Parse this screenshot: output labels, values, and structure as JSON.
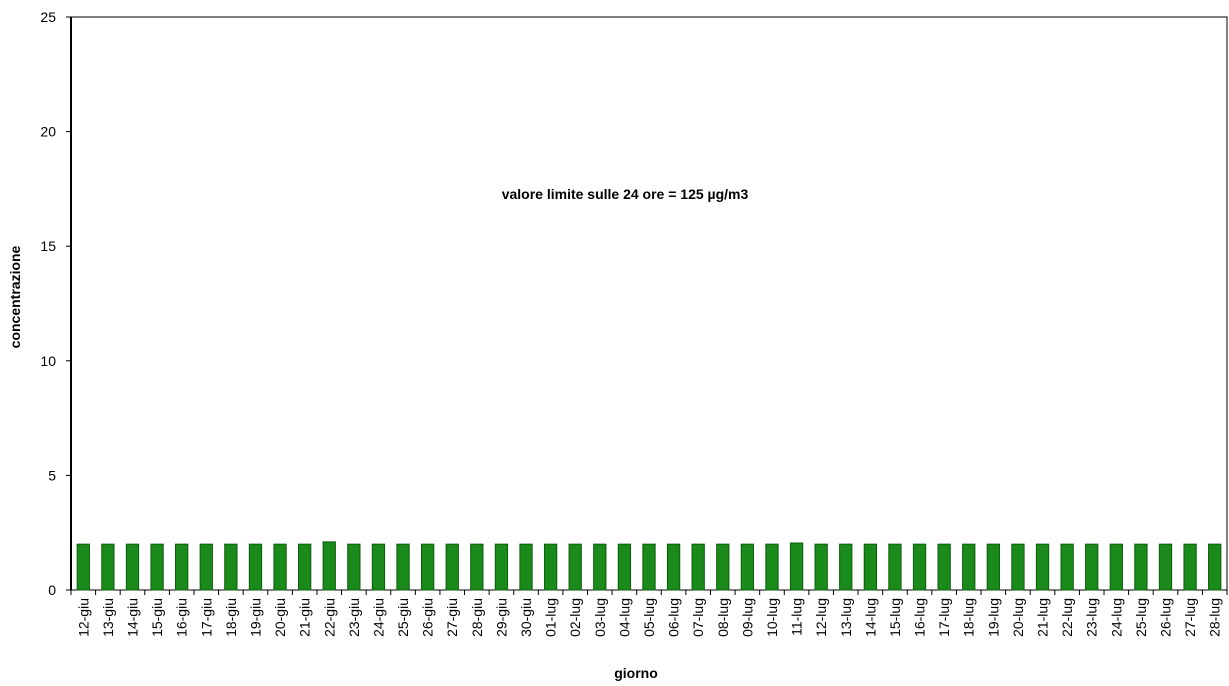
{
  "chart_data": {
    "type": "bar",
    "xlabel": "giorno",
    "ylabel": "concentrazione",
    "ylim": [
      0,
      25
    ],
    "yticks": [
      0,
      5,
      10,
      15,
      20,
      25
    ],
    "annotation": "valore limite sulle 24 ore = 125 µg/m3",
    "grid": false,
    "legend": "none",
    "bar_color": "#1a8a1a",
    "bar_edge_color": "#0b5e0b",
    "categories": [
      "12-giu",
      "13-giu",
      "14-giu",
      "15-giu",
      "16-giu",
      "17-giu",
      "18-giu",
      "19-giu",
      "20-giu",
      "21-giu",
      "22-giu",
      "23-giu",
      "24-giu",
      "25-giu",
      "26-giu",
      "27-giu",
      "28-giu",
      "29-giu",
      "30-giu",
      "01-lug",
      "02-lug",
      "03-lug",
      "04-lug",
      "05-lug",
      "06-lug",
      "07-lug",
      "08-lug",
      "09-lug",
      "10-lug",
      "11-lug",
      "12-lug",
      "13-lug",
      "14-lug",
      "15-lug",
      "16-lug",
      "17-lug",
      "18-lug",
      "19-lug",
      "20-lug",
      "21-lug",
      "22-lug",
      "23-lug",
      "24-lug",
      "25-lug",
      "26-lug",
      "27-lug",
      "28-lug"
    ],
    "values": [
      2,
      2,
      2,
      2,
      2,
      2,
      2,
      2,
      2,
      2,
      2.1,
      2,
      2,
      2,
      2,
      2,
      2,
      2,
      2,
      2,
      2,
      2,
      2,
      2,
      2,
      2,
      2,
      2,
      2,
      2.05,
      2,
      2,
      2,
      2,
      2,
      2,
      2,
      2,
      2,
      2,
      2,
      2,
      2,
      2,
      2,
      2,
      2
    ]
  }
}
